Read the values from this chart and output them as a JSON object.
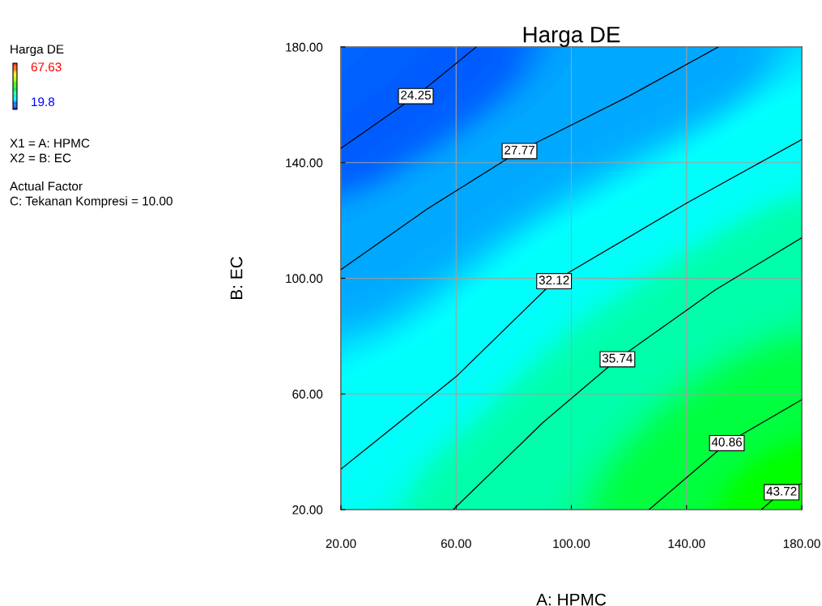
{
  "chart_data": {
    "type": "line",
    "title": "Harga DE",
    "xlabel": "A: HPMC",
    "ylabel": "B: EC",
    "clabel": "Harga DE",
    "colors": [
      "#0000ff",
      "#00ffff",
      "#00ff00",
      "#ffff00",
      "#ff0000"
    ],
    "xlim": [
      20,
      180
    ],
    "ylim": [
      20,
      180
    ],
    "xticks": [
      {
        "value": 20,
        "label": "20.00"
      },
      {
        "value": 60,
        "label": "60.00"
      },
      {
        "value": 100,
        "label": "100.00"
      },
      {
        "value": 140,
        "label": "140.00"
      },
      {
        "value": 180,
        "label": "180.00"
      }
    ],
    "yticks": [
      {
        "value": 20,
        "label": "20.00"
      },
      {
        "value": 60,
        "label": "60.00"
      },
      {
        "value": 100,
        "label": "100.00"
      },
      {
        "value": 140,
        "label": "140.00"
      },
      {
        "value": 180,
        "label": "180.00"
      }
    ],
    "grid": true,
    "legend": false,
    "marker": "none",
    "line_style": "solid",
    "series": [
      {
        "color": "#000000",
        "x": [
          20,
          46,
          67
        ],
        "values": [
          145,
          163,
          180
        ]
      },
      {
        "color": "#000000",
        "x": [
          20,
          50,
          82,
          120,
          151
        ],
        "values": [
          103,
          124,
          144,
          163,
          180
        ]
      },
      {
        "color": "#000000",
        "x": [
          20,
          60,
          94,
          140,
          180
        ],
        "values": [
          34,
          66,
          99,
          126,
          148
        ]
      },
      {
        "color": "#000000",
        "x": [
          59,
          90,
          116,
          150,
          180
        ],
        "values": [
          20,
          50,
          72,
          96,
          114
        ]
      },
      {
        "color": "#000000",
        "x": [
          127,
          154,
          180
        ],
        "values": [
          20,
          43,
          58
        ]
      },
      {
        "color": "#000000",
        "x": [
          166,
          173,
          180
        ],
        "values": [
          20,
          26,
          29
        ]
      }
    ],
    "annotations": [
      {
        "text": "24.25",
        "x": 46,
        "y": 163
      },
      {
        "text": "27.77",
        "x": 82,
        "y": 144
      },
      {
        "text": "32.12",
        "x": 94,
        "y": 99
      },
      {
        "text": "35.74",
        "x": 116,
        "y": 72
      },
      {
        "text": "40.86",
        "x": 154,
        "y": 43
      },
      {
        "text": "43.72",
        "x": 173,
        "y": 26
      },
      "67.63",
      "19.8",
      "X1 = A: HPMC",
      "X2 = B: EC",
      "Actual Factor",
      "C: Tekanan Kompresi = 10.00"
    ]
  }
}
